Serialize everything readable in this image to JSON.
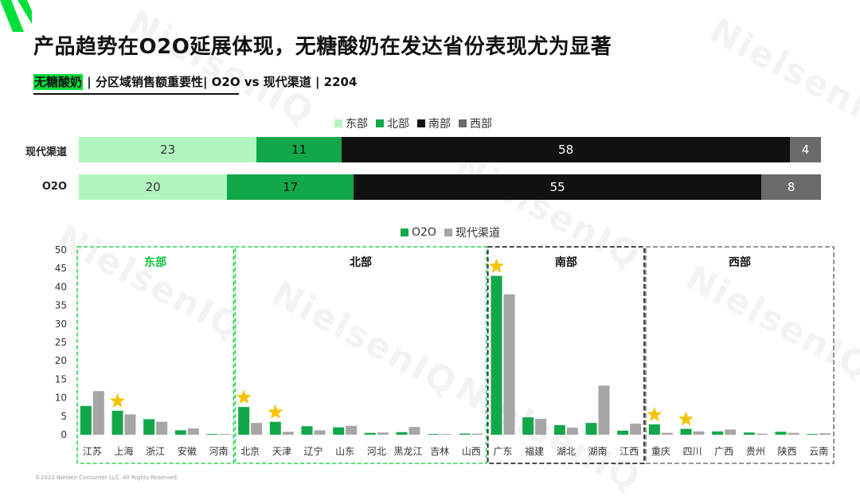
{
  "title": "产品趋势在O2O延展体现，无糖酸奶在发达省份表现尤为显著",
  "subtitle": {
    "highlight": "无糖酸奶",
    "rest": " | 分区域销售额重要性| O2O vs 现代渠道 | 2204"
  },
  "colors": {
    "east": "#b3f5bf",
    "north": "#12a84a",
    "south": "#111111",
    "west": "#6b6b6b",
    "o2o": "#12a84a",
    "modern": "#a6a6a6",
    "star": "#f5c400"
  },
  "watermark": "NielsenIQ",
  "footer": "©2022 Nielsen Consumer LLC. All Rights Reserved.",
  "chart_data": [
    {
      "type": "bar",
      "orientation": "horizontal-stacked-100",
      "legend": [
        "东部",
        "北部",
        "南部",
        "西部"
      ],
      "legend_position": "top-center",
      "categories": [
        "现代渠道",
        "O2O"
      ],
      "series": [
        {
          "name": "东部",
          "values": [
            23,
            20
          ]
        },
        {
          "name": "北部",
          "values": [
            11,
            17
          ]
        },
        {
          "name": "南部",
          "values": [
            58,
            55
          ]
        },
        {
          "name": "西部",
          "values": [
            4,
            8
          ]
        }
      ]
    },
    {
      "type": "bar",
      "legend": [
        "O2O",
        "现代渠道"
      ],
      "legend_position": "top-center",
      "ylim": [
        0,
        50
      ],
      "yticks": [
        0,
        5,
        10,
        15,
        20,
        25,
        30,
        35,
        40,
        45,
        50
      ],
      "groups": [
        {
          "name": "东部",
          "categories": [
            "江苏",
            "上海",
            "浙江",
            "安徽",
            "河南"
          ]
        },
        {
          "name": "北部",
          "categories": [
            "北京",
            "天津",
            "辽宁",
            "山东",
            "河北",
            "黑龙江",
            "吉林",
            "山西"
          ]
        },
        {
          "name": "南部",
          "categories": [
            "广东",
            "福建",
            "湖北",
            "湖南",
            "江西"
          ]
        },
        {
          "name": "西部",
          "categories": [
            "重庆",
            "四川",
            "广西",
            "贵州",
            "陕西",
            "云南"
          ]
        }
      ],
      "categories": [
        "江苏",
        "上海",
        "浙江",
        "安徽",
        "河南",
        "北京",
        "天津",
        "辽宁",
        "山东",
        "河北",
        "黑龙江",
        "吉林",
        "山西",
        "广东",
        "福建",
        "湖北",
        "湖南",
        "江西",
        "重庆",
        "四川",
        "广西",
        "贵州",
        "陕西",
        "云南"
      ],
      "series": [
        {
          "name": "O2O",
          "values": [
            7.8,
            6.5,
            4.2,
            1.2,
            0.2,
            7.5,
            3.5,
            2.3,
            2.0,
            0.5,
            0.7,
            0.2,
            0.3,
            43.0,
            4.7,
            2.6,
            3.2,
            1.1,
            2.8,
            1.6,
            0.9,
            0.6,
            0.8,
            0.2
          ]
        },
        {
          "name": "现代渠道",
          "values": [
            11.8,
            5.5,
            3.5,
            1.7,
            0.2,
            3.2,
            0.8,
            1.2,
            2.4,
            0.6,
            2.1,
            0.2,
            0.3,
            38.0,
            4.3,
            1.9,
            13.3,
            3.0,
            0.5,
            0.9,
            1.4,
            0.3,
            0.5,
            0.4
          ]
        }
      ],
      "starred": [
        "上海",
        "北京",
        "天津",
        "广东",
        "重庆",
        "四川"
      ]
    }
  ]
}
